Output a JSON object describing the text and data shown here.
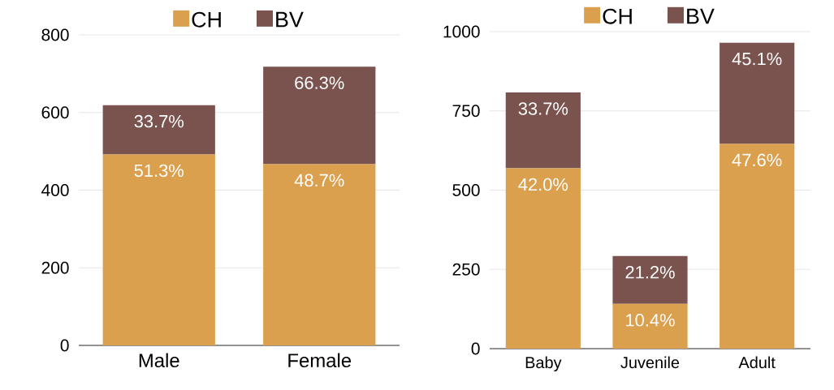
{
  "chart_data": [
    {
      "type": "bar",
      "stacked": true,
      "categories": [
        "Male",
        "Female"
      ],
      "series": [
        {
          "name": "CH",
          "color": "#dba04e",
          "values": [
            492,
            467
          ]
        },
        {
          "name": "BV",
          "color": "#7a534e",
          "values": [
            127,
            251
          ]
        }
      ],
      "annotations": [
        {
          "text": "51.3%",
          "x": "Male",
          "y": 492
        },
        {
          "text": "48.7%",
          "x": "Female",
          "y": 467
        },
        {
          "text": "33.7%",
          "x": "Male",
          "y": 619
        },
        {
          "text": "66.3%",
          "x": "Female",
          "y": 718
        }
      ],
      "ylim": [
        0,
        800
      ],
      "yticks": [
        0,
        200,
        400,
        600,
        800
      ],
      "grid": "y",
      "legend": "top"
    },
    {
      "type": "bar",
      "stacked": true,
      "categories": [
        "Baby",
        "Juvenile",
        "Adult"
      ],
      "series": [
        {
          "name": "CH",
          "color": "#dba04e",
          "values": [
            569,
            141,
            646
          ]
        },
        {
          "name": "BV",
          "color": "#7a534e",
          "values": [
            239,
            151,
            319
          ]
        }
      ],
      "annotations": [
        {
          "text": "42.0%",
          "x": "Baby",
          "y": 569
        },
        {
          "text": "10.4%",
          "x": "Juvenile",
          "y": 141
        },
        {
          "text": "47.6%",
          "x": "Adult",
          "y": 646
        },
        {
          "text": "33.7%",
          "x": "Baby",
          "y": 808
        },
        {
          "text": "21.2%",
          "x": "Juvenile",
          "y": 292
        },
        {
          "text": "45.1%",
          "x": "Adult",
          "y": 965
        }
      ],
      "ylim": [
        0,
        1000
      ],
      "yticks": [
        0,
        250,
        500,
        750,
        1000
      ],
      "grid": "y",
      "legend": "top"
    }
  ]
}
